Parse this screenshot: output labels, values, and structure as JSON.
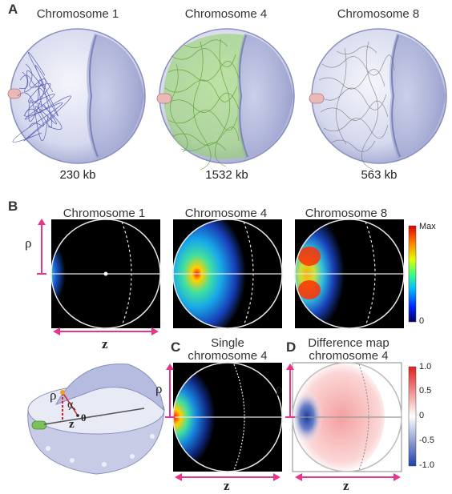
{
  "panels": {
    "a": "A",
    "b": "B",
    "c": "C",
    "d": "D"
  },
  "panel_a": {
    "chromosomes": [
      {
        "title": "Chromosome 1",
        "size": "230 kb",
        "color": "#3b3fa8"
      },
      {
        "title": "Chromosome 4",
        "size": "1532 kb",
        "color": "#5cb82e"
      },
      {
        "title": "Chromosome 8",
        "size": "563 kb",
        "color": "#9a9a9a"
      }
    ]
  },
  "panel_b": {
    "titles": [
      "Chromosome 1",
      "Chromosome 4",
      "Chromosome 8"
    ],
    "rho_label": "ρ",
    "z_label": "z",
    "colorbar": {
      "max_label": "Max",
      "min_label": "0"
    }
  },
  "schematic": {
    "rho_label": "ρ",
    "alpha_label": "α",
    "z_label": "z",
    "origin_label": "0"
  },
  "panel_c": {
    "title_line1": "Single",
    "title_line2": "chromosome 4",
    "rho_label": "ρ",
    "z_label": "z"
  },
  "panel_d": {
    "title_line1": "Difference map",
    "title_line2": "chromosome 4",
    "rho_label": "ρ",
    "z_label": "z",
    "colorbar_ticks": [
      "1.0",
      "0.5",
      "0",
      "-0.5",
      "-1.0"
    ]
  }
}
